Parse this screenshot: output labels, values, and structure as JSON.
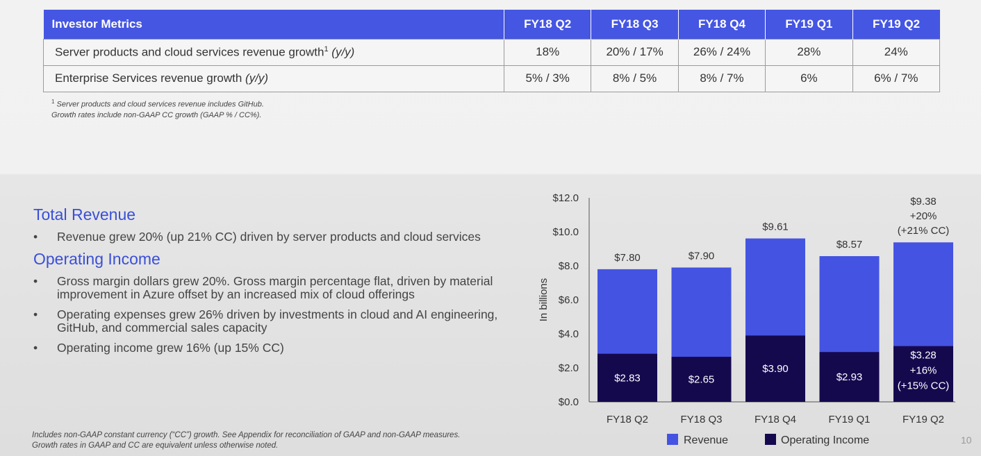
{
  "table": {
    "header": [
      "Investor Metrics",
      "FY18 Q2",
      "FY18 Q3",
      "FY18 Q4",
      "FY19 Q1",
      "FY19 Q2"
    ],
    "rows": [
      {
        "label": "Server products and cloud services revenue growth",
        "sup": "1",
        "suffix": "(y/y)",
        "values": [
          "18%",
          "20% / 17%",
          "26% / 24%",
          "28%",
          "24%"
        ]
      },
      {
        "label": "Enterprise Services revenue growth",
        "sup": "",
        "suffix": "(y/y)",
        "values": [
          "5% / 3%",
          "8% / 5%",
          "8% / 7%",
          "6%",
          "6% / 7%"
        ]
      }
    ],
    "footnote_sup": "1",
    "footnote_line1": "Server products and cloud services revenue includes GitHub.",
    "footnote_line2": "Growth rates include non-GAAP CC growth (GAAP % / CC%)."
  },
  "sections": {
    "revenue_title": "Total Revenue",
    "revenue_bullets": [
      "Revenue grew 20% (up 21% CC) driven by server products and cloud services"
    ],
    "income_title": "Operating Income",
    "income_bullets": [
      "Gross margin dollars grew 20%. Gross margin percentage flat, driven by material improvement in Azure offset by an increased mix of cloud offerings",
      "Operating expenses grew 26% driven by investments in cloud and AI engineering, GitHub, and commercial sales capacity",
      "Operating income grew 16% (up 15% CC)"
    ],
    "bullet_char": "•"
  },
  "bottom_note": {
    "line1": "Includes non-GAAP constant currency (“CC”) growth. See Appendix for reconciliation of GAAP and non-GAAP measures.",
    "line2": "Growth rates in GAAP and CC are equivalent unless otherwise noted."
  },
  "page_number": "10",
  "chart_data": {
    "type": "bar",
    "stacked": false,
    "overlay": true,
    "categories": [
      "FY18 Q2",
      "FY18 Q3",
      "FY18 Q4",
      "FY19 Q1",
      "FY19 Q2"
    ],
    "series": [
      {
        "name": "Revenue",
        "color": "#4553e2",
        "values": [
          7.8,
          7.9,
          9.61,
          8.57,
          9.38
        ],
        "labels": [
          [
            "$7.80"
          ],
          [
            "$7.90"
          ],
          [
            "$9.61"
          ],
          [
            "$8.57"
          ],
          [
            "$9.38",
            "+20%",
            "(+21% CC)"
          ]
        ]
      },
      {
        "name": "Operating Income",
        "color": "#15094e",
        "values": [
          2.83,
          2.65,
          3.9,
          2.93,
          3.28
        ],
        "labels": [
          [
            "$2.83"
          ],
          [
            "$2.65"
          ],
          [
            "$3.90"
          ],
          [
            "$2.93"
          ],
          [
            "$3.28",
            "+16%",
            "(+15% CC)"
          ]
        ]
      }
    ],
    "ylabel": "In billions",
    "ylim": [
      0,
      12
    ],
    "yticks": [
      "$0.0",
      "$2.0",
      "$4.0",
      "$6.0",
      "$8.0",
      "$10.0",
      "$12.0"
    ],
    "ytick_values": [
      0,
      2,
      4,
      6,
      8,
      10,
      12
    ],
    "grid": false,
    "legend_position": "bottom"
  }
}
